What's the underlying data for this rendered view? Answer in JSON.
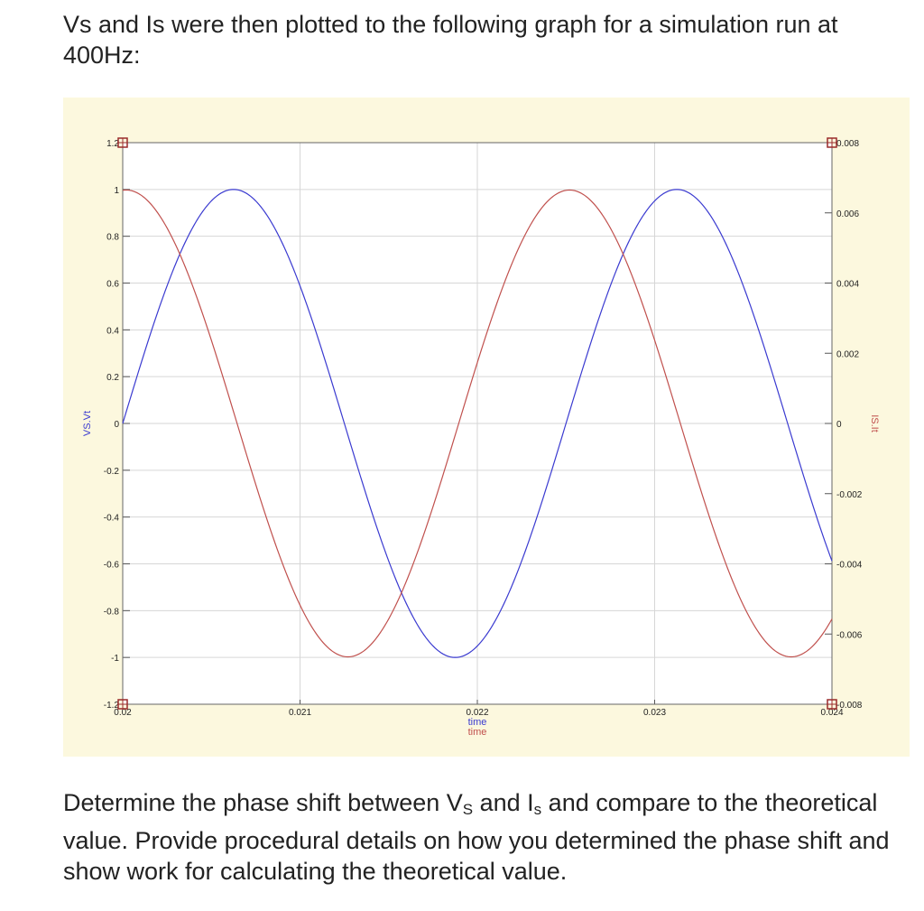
{
  "intro": {
    "text": "Vs and Is were then plotted to the following graph for a simulation run at 400Hz:"
  },
  "question": {
    "part1": "Determine the phase shift between V",
    "sub1": "S",
    "part2": " and I",
    "sub2": "s",
    "part3": " and compare to the theoretical value. Provide procedural details on how you determined the phase shift and show work for calculating the theoretical value."
  },
  "chart_data": {
    "type": "line",
    "title": "",
    "xlabel": "time",
    "xlabel_repeat": "time",
    "ylabel_left": "VS.Vt",
    "ylabel_right": "IS.It",
    "xlim": [
      0.02,
      0.024
    ],
    "ylim_left": [
      -1.2,
      1.2
    ],
    "ylim_right": [
      -0.008,
      0.008
    ],
    "x_ticks": [
      "0.02",
      "0.021",
      "0.022",
      "0.023",
      "0.024"
    ],
    "x_tick_values": [
      0.02,
      0.021,
      0.022,
      0.023,
      0.024
    ],
    "y_ticks_left": [
      "1.2",
      "1",
      "0.8",
      "0.6",
      "0.4",
      "0.2",
      "0",
      "-0.2",
      "-0.4",
      "-0.6",
      "-0.8",
      "-1",
      "-1.2"
    ],
    "y_tick_values_left": [
      1.2,
      1,
      0.8,
      0.6,
      0.4,
      0.2,
      0,
      -0.2,
      -0.4,
      -0.6,
      -0.8,
      -1,
      -1.2
    ],
    "y_ticks_right": [
      "0.008",
      "0.006",
      "0.004",
      "0.002",
      "0",
      "-0.002",
      "-0.004",
      "-0.006",
      "-0.008"
    ],
    "y_tick_values_right": [
      0.008,
      0.006,
      0.004,
      0.002,
      0,
      -0.002,
      -0.004,
      -0.006,
      -0.008
    ],
    "grid": true,
    "series": [
      {
        "axis": "left",
        "color": "#3a3ad0",
        "frequency_hz": 400,
        "amplitude": 1.0,
        "zero_crossings_rising": [
          0.02,
          0.0225
        ]
      },
      {
        "axis": "right",
        "color": "#c0504d",
        "frequency_hz": 400,
        "amplitude": 0.00665,
        "peaks": [
          0.02002,
          0.02252
        ]
      }
    ]
  }
}
